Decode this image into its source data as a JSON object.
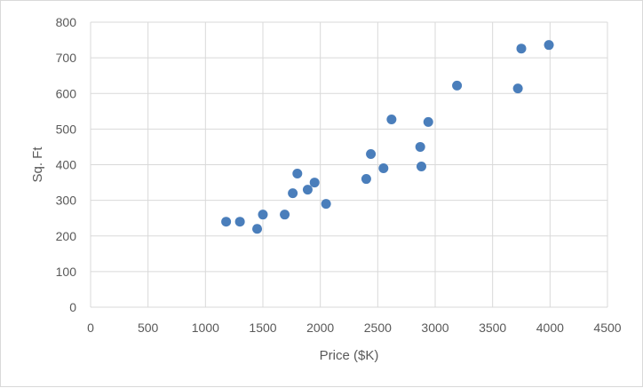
{
  "chart_data": {
    "type": "scatter",
    "title": "",
    "xlabel": "Price ($K)",
    "ylabel": "Sq. Ft",
    "xlim": [
      0,
      4500
    ],
    "ylim": [
      0,
      800
    ],
    "xticks": [
      0,
      500,
      1000,
      1500,
      2000,
      2500,
      3000,
      3500,
      4000,
      4500
    ],
    "yticks": [
      0,
      100,
      200,
      300,
      400,
      500,
      600,
      700,
      800
    ],
    "grid": true,
    "legend": "none",
    "marker_color": "#4a7ebb",
    "series": [
      {
        "points": [
          {
            "x": 1180,
            "y": 240
          },
          {
            "x": 1300,
            "y": 240
          },
          {
            "x": 1450,
            "y": 220
          },
          {
            "x": 1500,
            "y": 260
          },
          {
            "x": 1690,
            "y": 260
          },
          {
            "x": 1760,
            "y": 320
          },
          {
            "x": 1800,
            "y": 375
          },
          {
            "x": 1890,
            "y": 330
          },
          {
            "x": 1950,
            "y": 350
          },
          {
            "x": 2050,
            "y": 290
          },
          {
            "x": 2400,
            "y": 360
          },
          {
            "x": 2440,
            "y": 430
          },
          {
            "x": 2550,
            "y": 390
          },
          {
            "x": 2620,
            "y": 527
          },
          {
            "x": 2870,
            "y": 450
          },
          {
            "x": 2880,
            "y": 395
          },
          {
            "x": 2940,
            "y": 520
          },
          {
            "x": 3190,
            "y": 622
          },
          {
            "x": 3720,
            "y": 614
          },
          {
            "x": 3750,
            "y": 726
          },
          {
            "x": 3990,
            "y": 736
          }
        ]
      }
    ]
  }
}
